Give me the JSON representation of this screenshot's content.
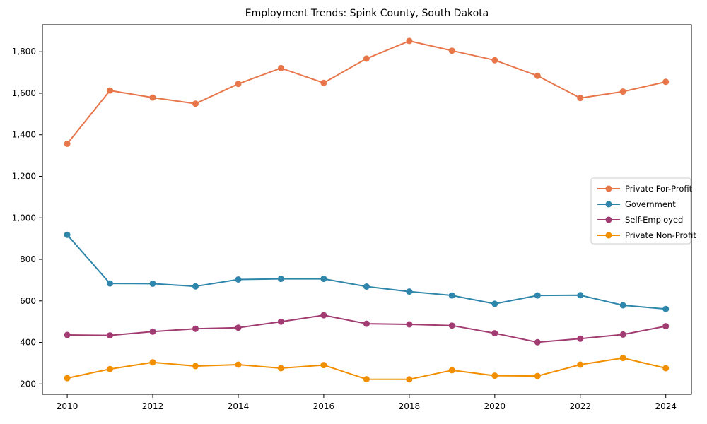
{
  "title": "Employment Trends: Spink County, South Dakota",
  "chart_data": {
    "type": "line",
    "x": [
      2010,
      2011,
      2012,
      2013,
      2014,
      2015,
      2016,
      2017,
      2018,
      2019,
      2020,
      2021,
      2022,
      2023,
      2024
    ],
    "series": [
      {
        "name": "Private For-Profit",
        "color": "#E8764B",
        "values": [
          1357,
          1613,
          1579,
          1550,
          1645,
          1721,
          1650,
          1767,
          1852,
          1805,
          1759,
          1684,
          1577,
          1608,
          1655
        ]
      },
      {
        "name": "Government",
        "color": "#2E86AB",
        "values": [
          918,
          684,
          683,
          670,
          703,
          706,
          706,
          669,
          645,
          626,
          586,
          626,
          627,
          579,
          561
        ]
      },
      {
        "name": "Self-Employed",
        "color": "#A23B72",
        "values": [
          436,
          434,
          452,
          466,
          471,
          500,
          531,
          490,
          487,
          481,
          444,
          401,
          418,
          438,
          478
        ]
      },
      {
        "name": "Private Non-Profit",
        "color": "#F18F01",
        "values": [
          228,
          272,
          304,
          286,
          293,
          276,
          291,
          223,
          222,
          266,
          240,
          238,
          293,
          325,
          276
        ]
      }
    ],
    "xlabel": "",
    "ylabel": "",
    "xlim": [
      2009.42,
      2024.6
    ],
    "ylim": [
      150,
      1930
    ],
    "yticks": [
      200,
      400,
      600,
      800,
      1000,
      1200,
      1400,
      1600,
      1800
    ],
    "xticks": [
      2010,
      2012,
      2014,
      2016,
      2018,
      2020,
      2022,
      2024
    ],
    "grid": false,
    "legend_position": "right",
    "marker": "circle"
  }
}
